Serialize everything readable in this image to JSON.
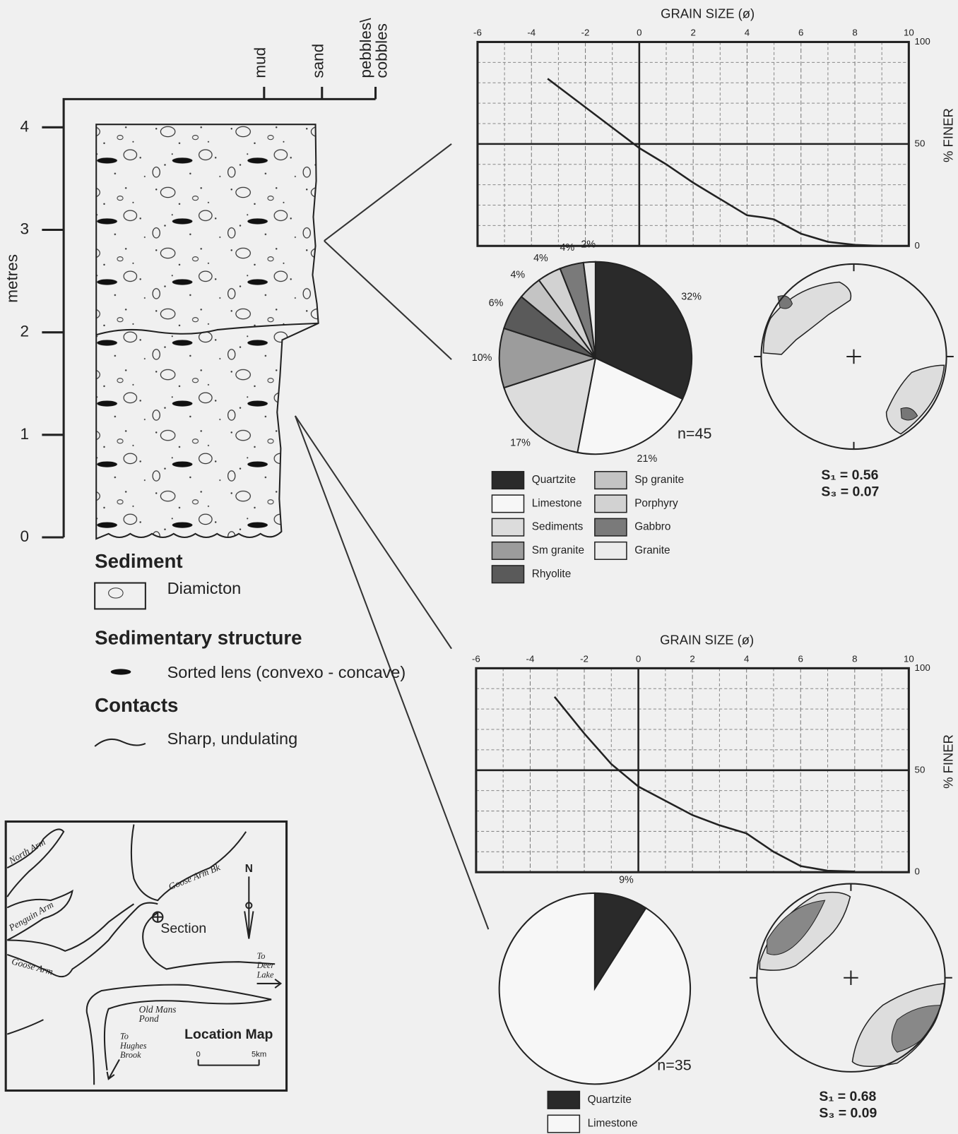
{
  "chart_data": [
    {
      "type": "line",
      "title": "GRAIN SIZE (ø)",
      "y_label": "% FINER",
      "x": [
        -3.4,
        -2,
        -1,
        0,
        1,
        2,
        3,
        4,
        4.6,
        5,
        6,
        7,
        8,
        9
      ],
      "values": [
        82,
        68,
        58,
        48,
        40,
        31,
        23,
        15,
        14,
        13,
        6,
        2,
        0.5,
        0
      ],
      "color": "#222222",
      "xlim": [
        -6,
        10
      ],
      "xticks": [
        -6,
        -4,
        -2,
        0,
        2,
        4,
        6,
        8,
        10
      ],
      "ylim": [
        0,
        100
      ],
      "yticks": [
        0,
        50,
        100
      ],
      "grid": true,
      "minor_xticks": [
        -5,
        -3,
        -1,
        1,
        3,
        5,
        7,
        9
      ],
      "minor_yticks": [
        10,
        20,
        30,
        40,
        60,
        70,
        80,
        90
      ],
      "bold_grid": {
        "x": 0,
        "y": 50
      }
    },
    {
      "type": "pie",
      "categories": [
        "Quartzite",
        "Limestone",
        "Sediments",
        "Sm granite",
        "Rhyolite",
        "Sp granite",
        "Porphyry",
        "Gabbro",
        "Granite"
      ],
      "values": [
        32,
        21,
        17,
        10,
        6,
        4,
        4,
        4,
        2
      ],
      "value_labels": [
        "32%",
        "21%",
        "17%",
        "10%",
        "6%",
        "4%",
        "4%",
        "4%",
        "2%"
      ],
      "colors": [
        "#2a2a2a",
        "#f7f7f7",
        "#dcdcdc",
        "#9c9c9c",
        "#5a5a5a",
        "#c4c4c4",
        "#d2d2d2",
        "#7a7a7a",
        "#ebebeb"
      ],
      "annotation": "n=45"
    },
    {
      "type": "line",
      "title": "GRAIN SIZE (ø)",
      "y_label": "% FINER",
      "x": [
        -3.1,
        -2,
        -1,
        0,
        1,
        2,
        3,
        4,
        5,
        6,
        7,
        8
      ],
      "values": [
        86,
        68,
        53,
        42,
        35,
        28,
        23,
        19,
        10,
        3,
        0.7,
        0.3
      ],
      "color": "#222222",
      "xlim": [
        -6,
        10
      ],
      "xticks": [
        -6,
        -4,
        -2,
        0,
        2,
        4,
        6,
        8,
        10
      ],
      "ylim": [
        0,
        100
      ],
      "yticks": [
        0,
        50,
        100
      ],
      "grid": true,
      "minor_xticks": [
        -5,
        -3,
        -1,
        1,
        3,
        5,
        7,
        9
      ],
      "minor_yticks": [
        10,
        20,
        30,
        40,
        60,
        70,
        80,
        90
      ],
      "bold_grid": {
        "x": 0,
        "y": 50
      }
    },
    {
      "type": "pie",
      "categories": [
        "Quartzite",
        "Limestone"
      ],
      "values": [
        9,
        91
      ],
      "value_labels": [
        "9%",
        "91%"
      ],
      "colors": [
        "#2a2a2a",
        "#f7f7f7"
      ],
      "annotation": "n=35"
    }
  ],
  "column": {
    "y_label": "metres",
    "ylim": [
      0,
      4
    ],
    "yticks": [
      0,
      1,
      2,
      3,
      4
    ],
    "categories": [
      [
        "mud"
      ],
      [
        "sand"
      ],
      [
        "pebbles\\",
        "cobbles"
      ]
    ]
  },
  "legend": {
    "sediment": "Sediment",
    "diamicton": "Diamicton",
    "structure": "Sedimentary structure",
    "lens": "Sorted lens (convexo - concave)",
    "contacts": "Contacts",
    "contact": "Sharp, undulating"
  },
  "stereonets": [
    {
      "s1": "S₁ = 0.56",
      "s3": "S₃ = 0.07"
    },
    {
      "s1": "S₁ = 0.68",
      "s3": "S₃ = 0.09"
    }
  ],
  "map": {
    "north_arm": "North Arm",
    "penguin_arm": "Penguin Arm",
    "goose_arm": "Goose Arm",
    "goose_arm_bk": "Goose Arm Bk",
    "section": "Section",
    "north": "N",
    "deer_lake": [
      "To",
      "Deer",
      "Lake"
    ],
    "pond": [
      "Old Mans",
      "Pond"
    ],
    "hughes": [
      "To",
      "Hughes",
      "Brook"
    ],
    "title": "Location Map",
    "scale_0": "0",
    "scale_5": "5km"
  }
}
